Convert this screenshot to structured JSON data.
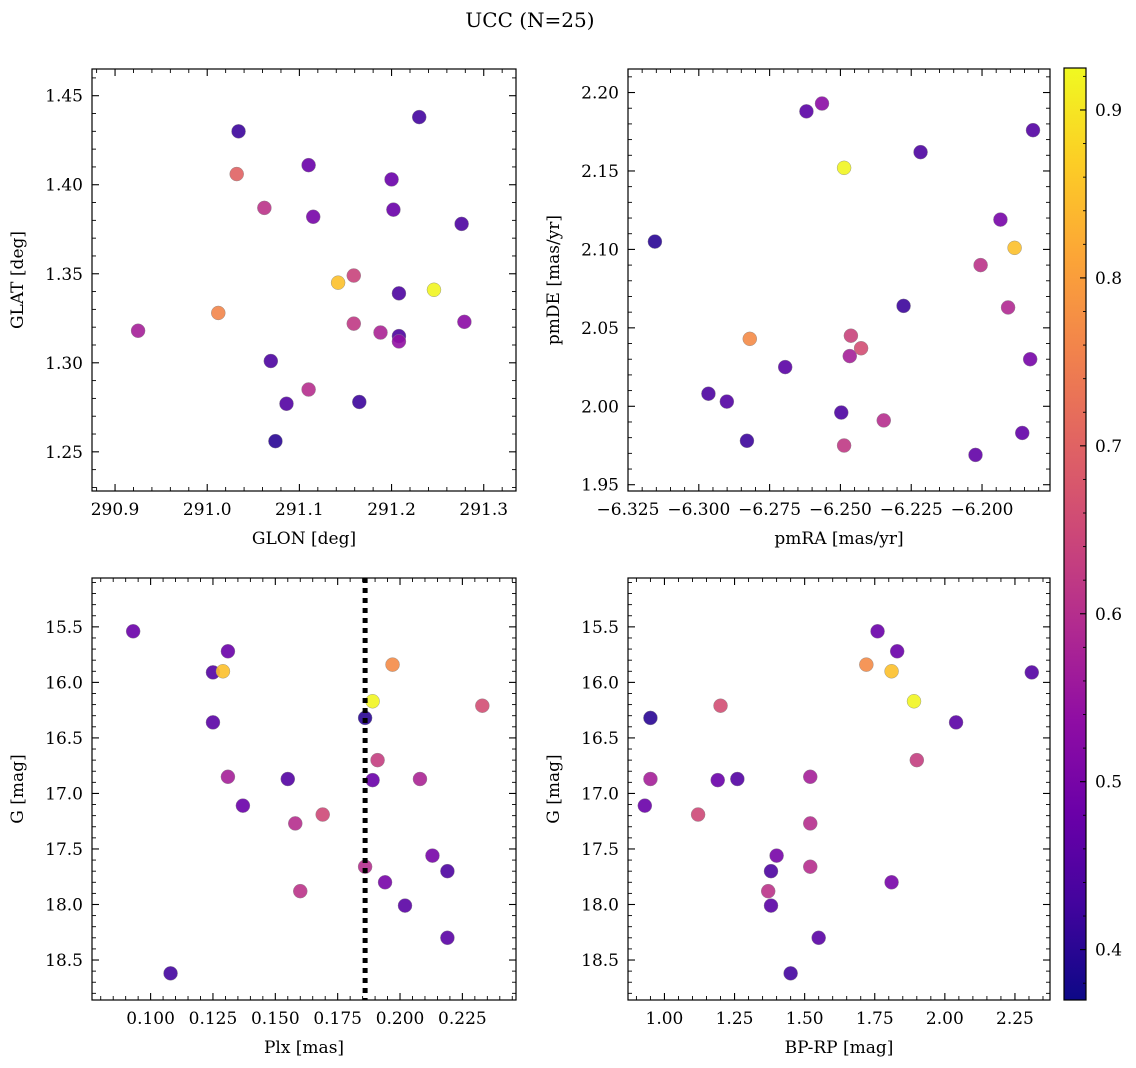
{
  "figure": {
    "title": "UCC (N=25)"
  },
  "colorbar": {
    "range": [
      0.37,
      0.925
    ],
    "ticks": [
      0.4,
      0.5,
      0.6,
      0.7,
      0.8,
      0.9
    ],
    "tick_labels": [
      "0.4",
      "0.5",
      "0.6",
      "0.7",
      "0.8",
      "0.9"
    ],
    "colormap": "plasma"
  },
  "chart_data": [
    {
      "type": "scatter",
      "xlabel": "GLON [deg]",
      "ylabel": "GLAT [deg]",
      "xlim": [
        290.875,
        291.335
      ],
      "ylim": [
        1.228,
        1.465
      ],
      "xticks": [
        290.9,
        291.0,
        291.1,
        291.2,
        291.3
      ],
      "xtick_labels": [
        "290.9",
        "291.0",
        "291.1",
        "291.2",
        "291.3"
      ],
      "yticks": [
        1.25,
        1.3,
        1.35,
        1.4,
        1.45
      ],
      "ytick_labels": [
        "1.25",
        "1.30",
        "1.35",
        "1.40",
        "1.45"
      ],
      "points": [
        {
          "x": 290.925,
          "y": 1.318,
          "c": 0.57
        },
        {
          "x": 291.012,
          "y": 1.328,
          "c": 0.76
        },
        {
          "x": 291.032,
          "y": 1.406,
          "c": 0.7
        },
        {
          "x": 291.034,
          "y": 1.43,
          "c": 0.42
        },
        {
          "x": 291.062,
          "y": 1.387,
          "c": 0.61
        },
        {
          "x": 291.069,
          "y": 1.301,
          "c": 0.44
        },
        {
          "x": 291.074,
          "y": 1.256,
          "c": 0.4
        },
        {
          "x": 291.086,
          "y": 1.277,
          "c": 0.45
        },
        {
          "x": 291.11,
          "y": 1.411,
          "c": 0.48
        },
        {
          "x": 291.11,
          "y": 1.285,
          "c": 0.6
        },
        {
          "x": 291.115,
          "y": 1.382,
          "c": 0.5
        },
        {
          "x": 291.142,
          "y": 1.345,
          "c": 0.85
        },
        {
          "x": 291.159,
          "y": 1.349,
          "c": 0.64
        },
        {
          "x": 291.159,
          "y": 1.322,
          "c": 0.62
        },
        {
          "x": 291.165,
          "y": 1.278,
          "c": 0.42
        },
        {
          "x": 291.188,
          "y": 1.317,
          "c": 0.58
        },
        {
          "x": 291.2,
          "y": 1.403,
          "c": 0.48
        },
        {
          "x": 291.202,
          "y": 1.386,
          "c": 0.48
        },
        {
          "x": 291.208,
          "y": 1.339,
          "c": 0.44
        },
        {
          "x": 291.208,
          "y": 1.315,
          "c": 0.44
        },
        {
          "x": 291.208,
          "y": 1.312,
          "c": 0.54
        },
        {
          "x": 291.23,
          "y": 1.438,
          "c": 0.43
        },
        {
          "x": 291.246,
          "y": 1.341,
          "c": 0.92
        },
        {
          "x": 291.276,
          "y": 1.378,
          "c": 0.44
        },
        {
          "x": 291.279,
          "y": 1.323,
          "c": 0.53
        }
      ]
    },
    {
      "type": "scatter",
      "xlabel": "pmRA [mas/yr]",
      "ylabel": "pmDE [mas/yr]",
      "xlim": [
        -6.325,
        -6.176
      ],
      "ylim": [
        1.946,
        2.215
      ],
      "xticks": [
        -6.325,
        -6.3,
        -6.275,
        -6.25,
        -6.225,
        -6.2,
        -6.175
      ],
      "xtick_labels": [
        "−6.325",
        "−6.300",
        "−6.275",
        "−6.250",
        "−6.225",
        "−6.200",
        "−6.175"
      ],
      "yticks": [
        1.95,
        2.0,
        2.05,
        2.1,
        2.15,
        2.2
      ],
      "ytick_labels": [
        "1.95",
        "2.00",
        "2.05",
        "2.10",
        "2.15",
        "2.20"
      ],
      "points": [
        {
          "x": -6.3155,
          "y": 2.105,
          "c": 0.4
        },
        {
          "x": -6.2966,
          "y": 2.008,
          "c": 0.44
        },
        {
          "x": -6.2901,
          "y": 2.003,
          "c": 0.45
        },
        {
          "x": -6.283,
          "y": 1.978,
          "c": 0.42
        },
        {
          "x": -6.282,
          "y": 2.043,
          "c": 0.77
        },
        {
          "x": -6.2695,
          "y": 2.025,
          "c": 0.46
        },
        {
          "x": -6.262,
          "y": 2.188,
          "c": 0.46
        },
        {
          "x": -6.2565,
          "y": 2.193,
          "c": 0.53
        },
        {
          "x": -6.2497,
          "y": 1.996,
          "c": 0.44
        },
        {
          "x": -6.2487,
          "y": 2.152,
          "c": 0.92
        },
        {
          "x": -6.2487,
          "y": 1.975,
          "c": 0.62
        },
        {
          "x": -6.2467,
          "y": 2.032,
          "c": 0.57
        },
        {
          "x": -6.2463,
          "y": 2.045,
          "c": 0.64
        },
        {
          "x": -6.2427,
          "y": 2.037,
          "c": 0.66
        },
        {
          "x": -6.2347,
          "y": 1.991,
          "c": 0.6
        },
        {
          "x": -6.2277,
          "y": 2.064,
          "c": 0.42
        },
        {
          "x": -6.2217,
          "y": 2.162,
          "c": 0.44
        },
        {
          "x": -6.2023,
          "y": 1.969,
          "c": 0.47
        },
        {
          "x": -6.2005,
          "y": 2.09,
          "c": 0.61
        },
        {
          "x": -6.1935,
          "y": 2.119,
          "c": 0.5
        },
        {
          "x": -6.1908,
          "y": 2.063,
          "c": 0.59
        },
        {
          "x": -6.1885,
          "y": 2.101,
          "c": 0.85
        },
        {
          "x": -6.1858,
          "y": 1.983,
          "c": 0.47
        },
        {
          "x": -6.183,
          "y": 2.03,
          "c": 0.5
        },
        {
          "x": -6.182,
          "y": 2.176,
          "c": 0.45
        }
      ]
    },
    {
      "type": "scatter",
      "xlabel": "Plx [mas]",
      "ylabel": "G [mag]",
      "xlim": [
        0.0765,
        0.2465
      ],
      "ylim": [
        18.86,
        15.06
      ],
      "inverted_y": true,
      "xticks": [
        0.1,
        0.125,
        0.15,
        0.175,
        0.2,
        0.225
      ],
      "xtick_labels": [
        "0.100",
        "0.125",
        "0.150",
        "0.175",
        "0.200",
        "0.225"
      ],
      "yticks": [
        15.5,
        16.0,
        16.5,
        17.0,
        17.5,
        18.0,
        18.5
      ],
      "ytick_labels": [
        "15.5",
        "16.0",
        "16.5",
        "17.0",
        "17.5",
        "18.0",
        "18.5"
      ],
      "vline": {
        "x": 0.186,
        "style": "dotted"
      },
      "points": [
        {
          "x": 0.093,
          "y": 15.54,
          "c": 0.48
        },
        {
          "x": 0.108,
          "y": 18.62,
          "c": 0.43
        },
        {
          "x": 0.125,
          "y": 15.91,
          "c": 0.45
        },
        {
          "x": 0.125,
          "y": 16.36,
          "c": 0.46
        },
        {
          "x": 0.129,
          "y": 15.9,
          "c": 0.85
        },
        {
          "x": 0.131,
          "y": 15.72,
          "c": 0.48
        },
        {
          "x": 0.131,
          "y": 16.85,
          "c": 0.57
        },
        {
          "x": 0.137,
          "y": 17.11,
          "c": 0.48
        },
        {
          "x": 0.155,
          "y": 16.87,
          "c": 0.45
        },
        {
          "x": 0.158,
          "y": 17.27,
          "c": 0.6
        },
        {
          "x": 0.16,
          "y": 17.88,
          "c": 0.61
        },
        {
          "x": 0.169,
          "y": 17.19,
          "c": 0.65
        },
        {
          "x": 0.186,
          "y": 16.32,
          "c": 0.4
        },
        {
          "x": 0.186,
          "y": 17.66,
          "c": 0.6
        },
        {
          "x": 0.189,
          "y": 16.17,
          "c": 0.92
        },
        {
          "x": 0.189,
          "y": 16.88,
          "c": 0.48
        },
        {
          "x": 0.191,
          "y": 16.7,
          "c": 0.63
        },
        {
          "x": 0.194,
          "y": 17.8,
          "c": 0.5
        },
        {
          "x": 0.197,
          "y": 15.84,
          "c": 0.77
        },
        {
          "x": 0.202,
          "y": 18.01,
          "c": 0.46
        },
        {
          "x": 0.208,
          "y": 16.87,
          "c": 0.58
        },
        {
          "x": 0.213,
          "y": 17.56,
          "c": 0.5
        },
        {
          "x": 0.219,
          "y": 17.7,
          "c": 0.44
        },
        {
          "x": 0.219,
          "y": 18.3,
          "c": 0.46
        },
        {
          "x": 0.233,
          "y": 16.21,
          "c": 0.66
        }
      ]
    },
    {
      "type": "scatter",
      "xlabel": "BP-RP [mag]",
      "ylabel": "G [mag]",
      "xlim": [
        0.87,
        2.375
      ],
      "ylim": [
        18.86,
        15.06
      ],
      "inverted_y": true,
      "xticks": [
        1.0,
        1.25,
        1.5,
        1.75,
        2.0,
        2.25
      ],
      "xtick_labels": [
        "1.00",
        "1.25",
        "1.50",
        "1.75",
        "2.00",
        "2.25"
      ],
      "yticks": [
        15.5,
        16.0,
        16.5,
        17.0,
        17.5,
        18.0,
        18.5
      ],
      "ytick_labels": [
        "15.5",
        "16.0",
        "16.5",
        "17.0",
        "17.5",
        "18.0",
        "18.5"
      ],
      "points": [
        {
          "x": 0.93,
          "y": 17.11,
          "c": 0.48
        },
        {
          "x": 0.95,
          "y": 16.32,
          "c": 0.4
        },
        {
          "x": 0.95,
          "y": 16.87,
          "c": 0.57
        },
        {
          "x": 1.12,
          "y": 17.19,
          "c": 0.65
        },
        {
          "x": 1.19,
          "y": 16.88,
          "c": 0.48
        },
        {
          "x": 1.2,
          "y": 16.21,
          "c": 0.66
        },
        {
          "x": 1.26,
          "y": 16.87,
          "c": 0.45
        },
        {
          "x": 1.37,
          "y": 17.88,
          "c": 0.61
        },
        {
          "x": 1.38,
          "y": 17.7,
          "c": 0.44
        },
        {
          "x": 1.38,
          "y": 18.01,
          "c": 0.46
        },
        {
          "x": 1.4,
          "y": 17.56,
          "c": 0.5
        },
        {
          "x": 1.45,
          "y": 18.62,
          "c": 0.43
        },
        {
          "x": 1.52,
          "y": 16.85,
          "c": 0.57
        },
        {
          "x": 1.52,
          "y": 17.27,
          "c": 0.6
        },
        {
          "x": 1.52,
          "y": 17.66,
          "c": 0.6
        },
        {
          "x": 1.55,
          "y": 18.3,
          "c": 0.46
        },
        {
          "x": 1.72,
          "y": 15.84,
          "c": 0.77
        },
        {
          "x": 1.76,
          "y": 15.54,
          "c": 0.48
        },
        {
          "x": 1.81,
          "y": 15.9,
          "c": 0.85
        },
        {
          "x": 1.81,
          "y": 17.8,
          "c": 0.5
        },
        {
          "x": 1.83,
          "y": 15.72,
          "c": 0.48
        },
        {
          "x": 1.89,
          "y": 16.17,
          "c": 0.92
        },
        {
          "x": 1.9,
          "y": 16.7,
          "c": 0.63
        },
        {
          "x": 2.04,
          "y": 16.36,
          "c": 0.46
        },
        {
          "x": 2.31,
          "y": 15.91,
          "c": 0.45
        }
      ]
    }
  ]
}
